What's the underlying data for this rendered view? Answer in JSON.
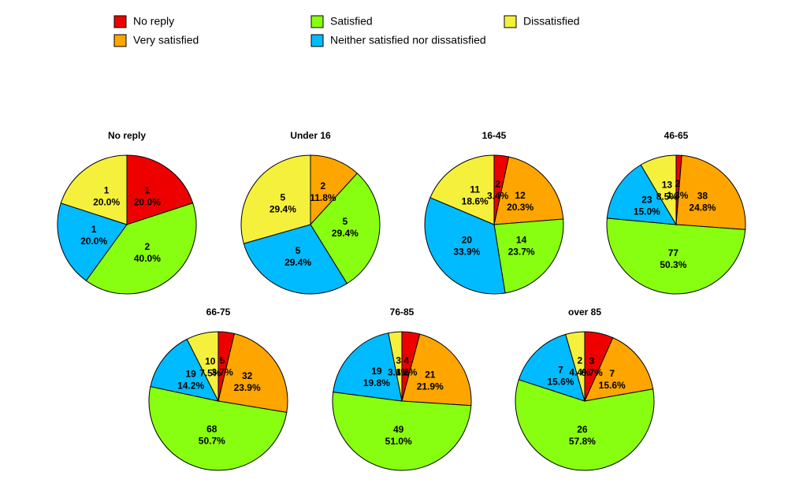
{
  "chart_data": [
    {
      "type": "pie",
      "title": "No reply",
      "categories": [
        "No reply",
        "Very satisfied",
        "Satisfied",
        "Neither satisfied nor dissatisfied",
        "Dissatisfied"
      ],
      "colors": [
        "#ee0000",
        "#ffa500",
        "#88ff11",
        "#00bbff",
        "#f5f03c"
      ],
      "values": [
        1,
        0,
        2,
        1,
        1
      ],
      "percentages": [
        20.0,
        null,
        40.0,
        20.0,
        20.0
      ],
      "percentage_labels": [
        "20.0%",
        null,
        "40.0%",
        "20.0%",
        "20.0%"
      ]
    },
    {
      "type": "pie",
      "title": "Under 16",
      "categories": [
        "No reply",
        "Very satisfied",
        "Satisfied",
        "Neither satisfied nor dissatisfied",
        "Dissatisfied"
      ],
      "colors": [
        "#ee0000",
        "#ffa500",
        "#88ff11",
        "#00bbff",
        "#f5f03c"
      ],
      "values": [
        0,
        2,
        5,
        5,
        5
      ],
      "percentages": [
        null,
        11.8,
        29.4,
        29.4,
        29.4
      ],
      "percentage_labels": [
        null,
        "11.8%",
        "29.4%",
        "29.4%",
        "29.4%"
      ]
    },
    {
      "type": "pie",
      "title": "16-45",
      "categories": [
        "No reply",
        "Very satisfied",
        "Satisfied",
        "Neither satisfied nor dissatisfied",
        "Dissatisfied"
      ],
      "colors": [
        "#ee0000",
        "#ffa500",
        "#88ff11",
        "#00bbff",
        "#f5f03c"
      ],
      "values": [
        2,
        12,
        14,
        20,
        11
      ],
      "percentages": [
        3.4,
        20.3,
        23.7,
        33.9,
        18.6
      ],
      "percentage_labels": [
        "3.4%",
        "20.3%",
        "23.7%",
        "33.9%",
        "18.6%"
      ]
    },
    {
      "type": "pie",
      "title": "46-65",
      "categories": [
        "No reply",
        "Very satisfied",
        "Satisfied",
        "Neither satisfied nor dissatisfied",
        "Dissatisfied"
      ],
      "colors": [
        "#ee0000",
        "#ffa500",
        "#88ff11",
        "#00bbff",
        "#f5f03c"
      ],
      "values": [
        2,
        38,
        77,
        23,
        13
      ],
      "percentages": [
        1.3,
        24.8,
        50.3,
        15.0,
        8.5
      ],
      "percentage_labels": [
        "1.3%",
        "24.8%",
        "50.3%",
        "15.0%",
        "8.5%"
      ]
    },
    {
      "type": "pie",
      "title": "66-75",
      "categories": [
        "No reply",
        "Very satisfied",
        "Satisfied",
        "Neither satisfied nor dissatisfied",
        "Dissatisfied"
      ],
      "colors": [
        "#ee0000",
        "#ffa500",
        "#88ff11",
        "#00bbff",
        "#f5f03c"
      ],
      "values": [
        5,
        32,
        68,
        19,
        10
      ],
      "percentages": [
        3.7,
        23.9,
        50.7,
        14.2,
        7.5
      ],
      "percentage_labels": [
        "3.7%",
        "23.9%",
        "50.7%",
        "14.2%",
        "7.5%"
      ]
    },
    {
      "type": "pie",
      "title": "76-85",
      "categories": [
        "No reply",
        "Very satisfied",
        "Satisfied",
        "Neither satisfied nor dissatisfied",
        "Dissatisfied"
      ],
      "colors": [
        "#ee0000",
        "#ffa500",
        "#88ff11",
        "#00bbff",
        "#f5f03c"
      ],
      "values": [
        4,
        21,
        49,
        19,
        3
      ],
      "percentages": [
        4.2,
        21.9,
        51.0,
        19.8,
        3.1
      ],
      "percentage_labels": [
        "4.2%",
        "21.9%",
        "51.0%",
        "19.8%",
        "3.1%"
      ]
    },
    {
      "type": "pie",
      "title": "over 85",
      "categories": [
        "No reply",
        "Very satisfied",
        "Satisfied",
        "Neither satisfied nor dissatisfied",
        "Dissatisfied"
      ],
      "colors": [
        "#ee0000",
        "#ffa500",
        "#88ff11",
        "#00bbff",
        "#f5f03c"
      ],
      "values": [
        3,
        7,
        26,
        7,
        2
      ],
      "percentages": [
        6.7,
        15.6,
        57.8,
        15.6,
        4.4
      ],
      "percentage_labels": [
        "6.7%",
        "15.6%",
        "57.8%",
        "15.6%",
        "4.4%"
      ]
    }
  ]
}
